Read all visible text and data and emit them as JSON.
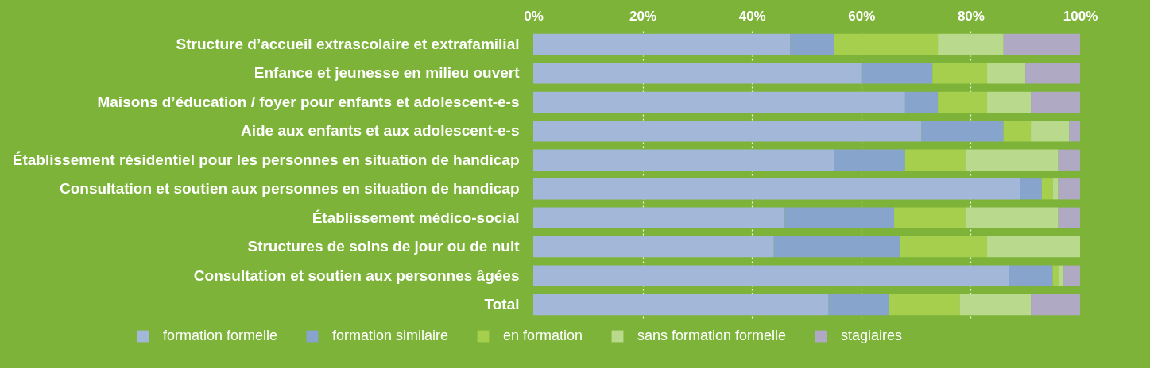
{
  "chart_data": {
    "type": "bar",
    "orientation": "horizontal",
    "stacked": true,
    "categories": [
      "Structure d’accueil extrascolaire et extrafamilial",
      "Enfance et jeunesse en milieu ouvert",
      "Maisons d’éducation / foyer pour enfants et adolescent-e-s",
      "Aide aux enfants et aux adolescent-e-s",
      "Établissement résidentiel pour les personnes en situation de handicap",
      "Consultation et soutien aux personnes en situation de handicap",
      "Établissement médico-social",
      "Structures de soins de jour ou de nuit",
      "Consultation et soutien aux personnes âgées",
      "Total"
    ],
    "series": [
      {
        "name": "formation formelle",
        "color": "#a3b8d9",
        "values": [
          47,
          60,
          68,
          71,
          55,
          89,
          46,
          44,
          87,
          54
        ]
      },
      {
        "name": "formation similaire",
        "color": "#87a5cc",
        "values": [
          8,
          13,
          6,
          15,
          13,
          4,
          20,
          23,
          8,
          11
        ]
      },
      {
        "name": "en formation",
        "color": "#a5cf4c",
        "values": [
          19,
          10,
          9,
          5,
          11,
          2,
          13,
          16,
          1,
          13
        ]
      },
      {
        "name": "sans formation formelle",
        "color": "#b9da8c",
        "values": [
          12,
          7,
          8,
          7,
          17,
          1,
          17,
          17,
          1,
          13
        ]
      },
      {
        "name": "stagiaires",
        "color": "#b0a9c4",
        "values": [
          14,
          10,
          9,
          2,
          4,
          4,
          4,
          0,
          3,
          9
        ]
      }
    ],
    "xlim": [
      0,
      100
    ],
    "xticks": [
      {
        "value": 0,
        "label": "0%"
      },
      {
        "value": 20,
        "label": "20%"
      },
      {
        "value": 40,
        "label": "40%"
      },
      {
        "value": 60,
        "label": "60%"
      },
      {
        "value": 80,
        "label": "80%"
      },
      {
        "value": 100,
        "label": "100%"
      }
    ],
    "grid": "x",
    "legend": "bottom"
  }
}
